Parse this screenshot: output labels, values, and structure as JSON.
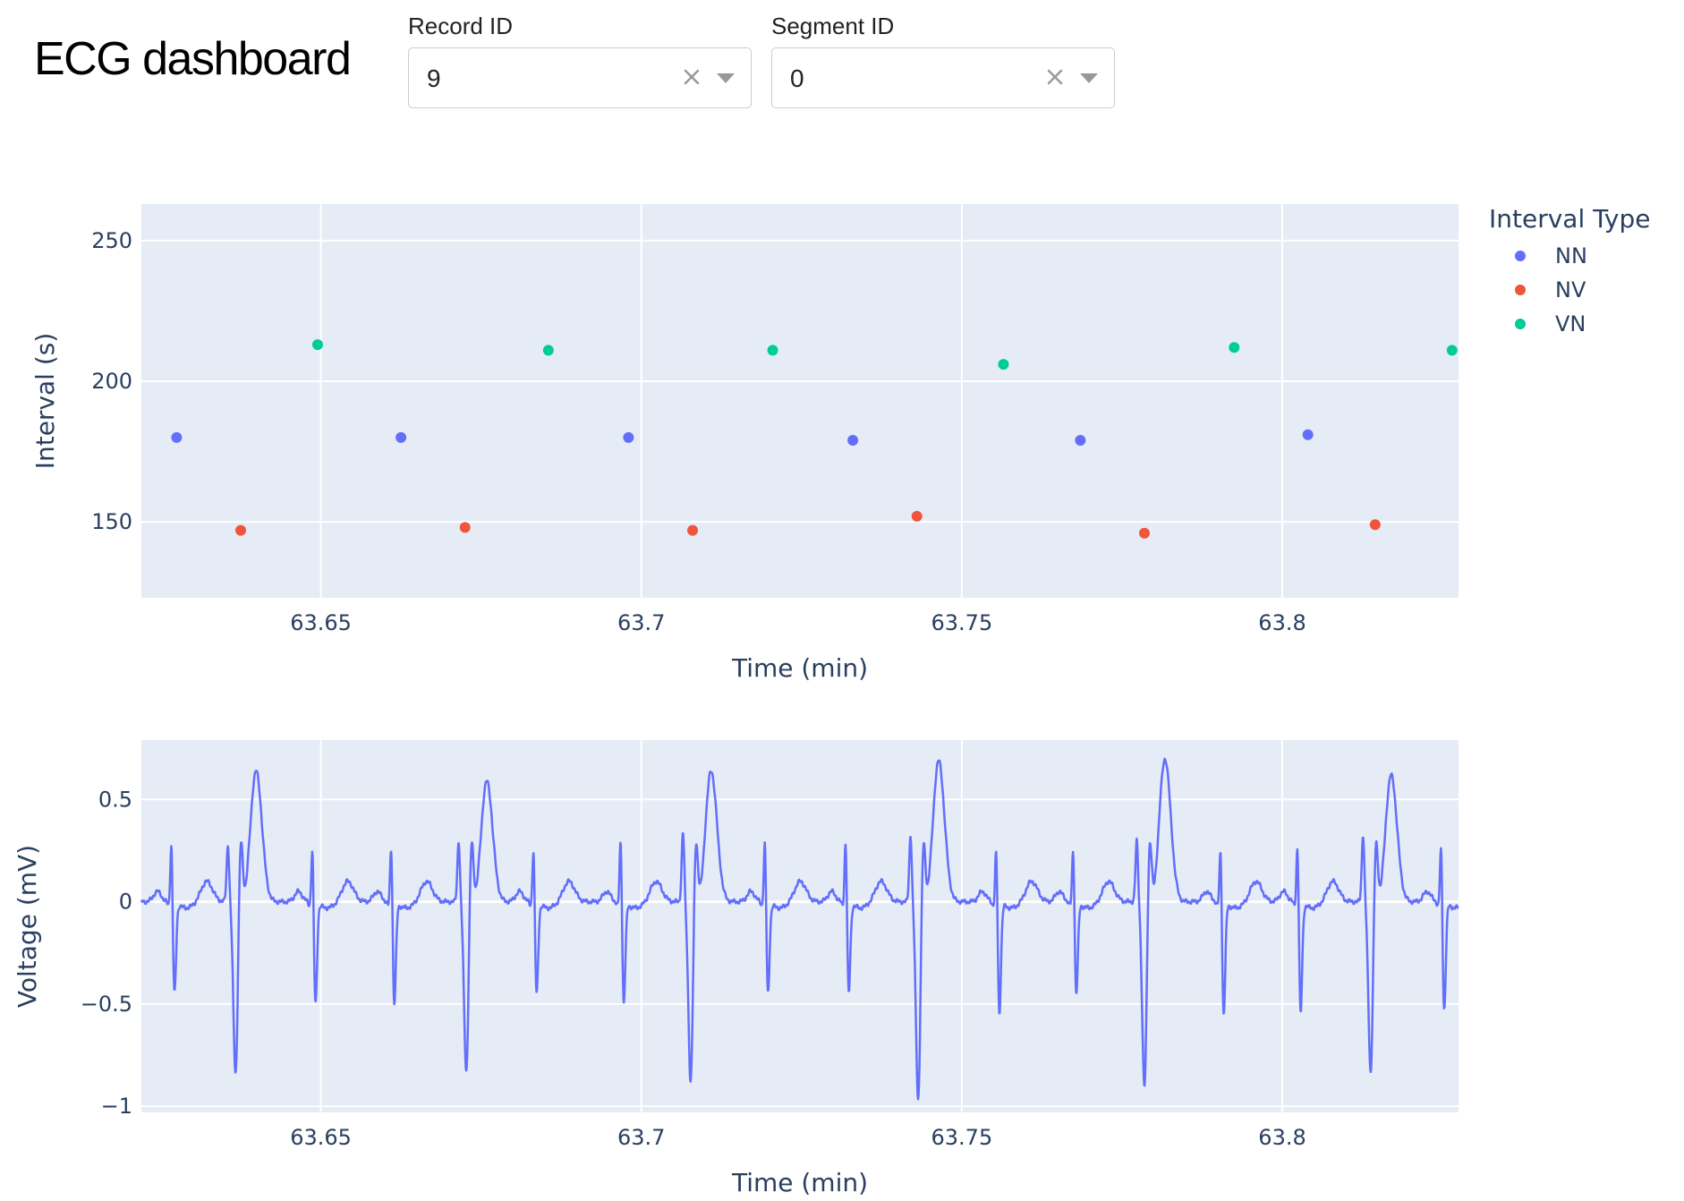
{
  "title": "ECG dashboard",
  "filters": {
    "record": {
      "label": "Record ID",
      "value": "9"
    },
    "segment": {
      "label": "Segment ID",
      "value": "0"
    }
  },
  "colors": {
    "plot_bg": "#e5ecf6",
    "grid": "#ffffff",
    "text": "#2a3f5f",
    "NN": "#636efa",
    "NV": "#ef553b",
    "VN": "#00cc96",
    "ecg_line": "#636efa"
  },
  "chart_data": [
    {
      "type": "scatter",
      "xlabel": "Time (min)",
      "ylabel": "Interval (s)",
      "xlim": [
        63.622,
        63.8275
      ],
      "ylim": [
        123,
        263
      ],
      "x_ticks": [
        63.65,
        63.7,
        63.75,
        63.8
      ],
      "x_tick_labels": [
        "63.65",
        "63.7",
        "63.75",
        "63.8"
      ],
      "y_ticks": [
        150,
        200,
        250
      ],
      "y_tick_labels": [
        "150",
        "200",
        "250"
      ],
      "grid": true,
      "legend": {
        "title": "Interval Type",
        "position": "top-right"
      },
      "series": [
        {
          "name": "NN",
          "x": [
            63.6275,
            63.6625,
            63.698,
            63.733,
            63.7685,
            63.804
          ],
          "y": [
            180,
            180,
            180,
            179,
            179,
            181
          ]
        },
        {
          "name": "NV",
          "x": [
            63.6375,
            63.6725,
            63.708,
            63.743,
            63.7785,
            63.8145
          ],
          "y": [
            147,
            148,
            147,
            152,
            146,
            149
          ]
        },
        {
          "name": "VN",
          "x": [
            63.6495,
            63.6855,
            63.7205,
            63.7565,
            63.7925,
            63.8265
          ],
          "y": [
            213,
            211,
            211,
            206,
            212,
            211
          ]
        }
      ]
    },
    {
      "type": "line",
      "xlabel": "Time (min)",
      "ylabel": "Voltage (mV)",
      "xlim": [
        63.622,
        63.8275
      ],
      "ylim": [
        -1.03,
        0.79
      ],
      "x_ticks": [
        63.65,
        63.7,
        63.75,
        63.8
      ],
      "x_tick_labels": [
        "63.65",
        "63.7",
        "63.75",
        "63.8"
      ],
      "y_ticks": [
        0.5,
        0,
        -0.5,
        -1
      ],
      "y_tick_labels": [
        "0.5",
        "0",
        "−0.5",
        "−1"
      ],
      "grid": true,
      "series": [
        {
          "normal_beats": [
            {
              "t": 63.6267,
              "r": 0.37,
              "s": -0.45
            },
            {
              "t": 63.6487,
              "r": 0.35,
              "s": -0.5
            },
            {
              "t": 63.661,
              "r": 0.36,
              "s": -0.5
            },
            {
              "t": 63.6832,
              "r": 0.34,
              "s": -0.45
            },
            {
              "t": 63.6968,
              "r": 0.39,
              "s": -0.5
            },
            {
              "t": 63.7193,
              "r": 0.38,
              "s": -0.45
            },
            {
              "t": 63.7319,
              "r": 0.38,
              "s": -0.45
            },
            {
              "t": 63.7554,
              "r": 0.35,
              "s": -0.55
            },
            {
              "t": 63.7674,
              "r": 0.34,
              "s": -0.45
            },
            {
              "t": 63.7904,
              "r": 0.35,
              "s": -0.55
            },
            {
              "t": 63.8024,
              "r": 0.37,
              "s": -0.55
            },
            {
              "t": 63.8248,
              "r": 0.36,
              "s": -0.53
            }
          ],
          "pvc_beats": [
            {
              "t": 63.6367,
              "pre": 0.28,
              "trough": -0.84,
              "peak": 0.64
            },
            {
              "t": 63.6727,
              "pre": 0.3,
              "trough": -0.83,
              "peak": 0.59
            },
            {
              "t": 63.7077,
              "pre": 0.34,
              "trough": -0.89,
              "peak": 0.64
            },
            {
              "t": 63.7432,
              "pre": 0.33,
              "trough": -0.97,
              "peak": 0.69
            },
            {
              "t": 63.7785,
              "pre": 0.3,
              "trough": -0.91,
              "peak": 0.7
            },
            {
              "t": 63.8138,
              "pre": 0.33,
              "trough": -0.84,
              "peak": 0.62
            }
          ]
        }
      ]
    }
  ]
}
